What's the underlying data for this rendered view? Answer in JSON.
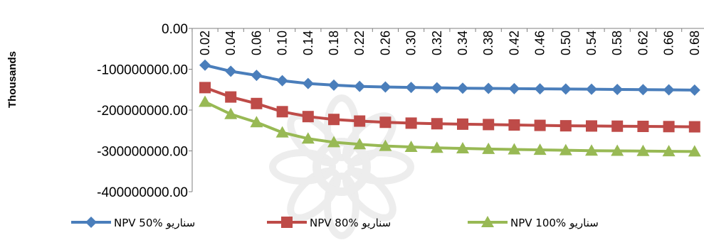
{
  "chart_data": {
    "type": "line",
    "ylabel": "Thousands",
    "ylim": [
      -400000000,
      0
    ],
    "yticks": [
      "0.00",
      "-100000000.00",
      "-200000000.00",
      "-300000000.00",
      "-400000000.00"
    ],
    "categories": [
      "0.02",
      "0.04",
      "0.06",
      "0.10",
      "0.14",
      "0.18",
      "0.22",
      "0.26",
      "0.30",
      "0.32",
      "0.34",
      "0.38",
      "0.42",
      "0.46",
      "0.50",
      "0.54",
      "0.58",
      "0.62",
      "0.66",
      "0.68"
    ],
    "legend_position": "bottom",
    "series": [
      {
        "name": "NPV  50% سناریو",
        "color": "#4a7ebb",
        "marker": "diamond",
        "values": [
          -90000000,
          -105000000,
          -115000000,
          -128000000,
          -135000000,
          -139000000,
          -142000000,
          -143500000,
          -144500000,
          -145500000,
          -146500000,
          -147000000,
          -147500000,
          -148000000,
          -148500000,
          -149000000,
          -149500000,
          -150000000,
          -150500000,
          -151000000
        ]
      },
      {
        "name": "NPV  80% سناریو",
        "color": "#be4b48",
        "marker": "square",
        "values": [
          -145000000,
          -168000000,
          -184000000,
          -204000000,
          -216000000,
          -223000000,
          -227000000,
          -230000000,
          -232000000,
          -233500000,
          -234500000,
          -235500000,
          -236500000,
          -237500000,
          -238500000,
          -239000000,
          -239500000,
          -240000000,
          -240500000,
          -241000000
        ]
      },
      {
        "name": "NPV   100% سناریو",
        "color": "#98b954",
        "marker": "triangle",
        "values": [
          -180000000,
          -210000000,
          -230000000,
          -255000000,
          -270000000,
          -279000000,
          -284000000,
          -288000000,
          -290500000,
          -292500000,
          -294000000,
          -295500000,
          -296500000,
          -297500000,
          -298500000,
          -299500000,
          -300000000,
          -300500000,
          -301000000,
          -301500000
        ]
      }
    ]
  }
}
